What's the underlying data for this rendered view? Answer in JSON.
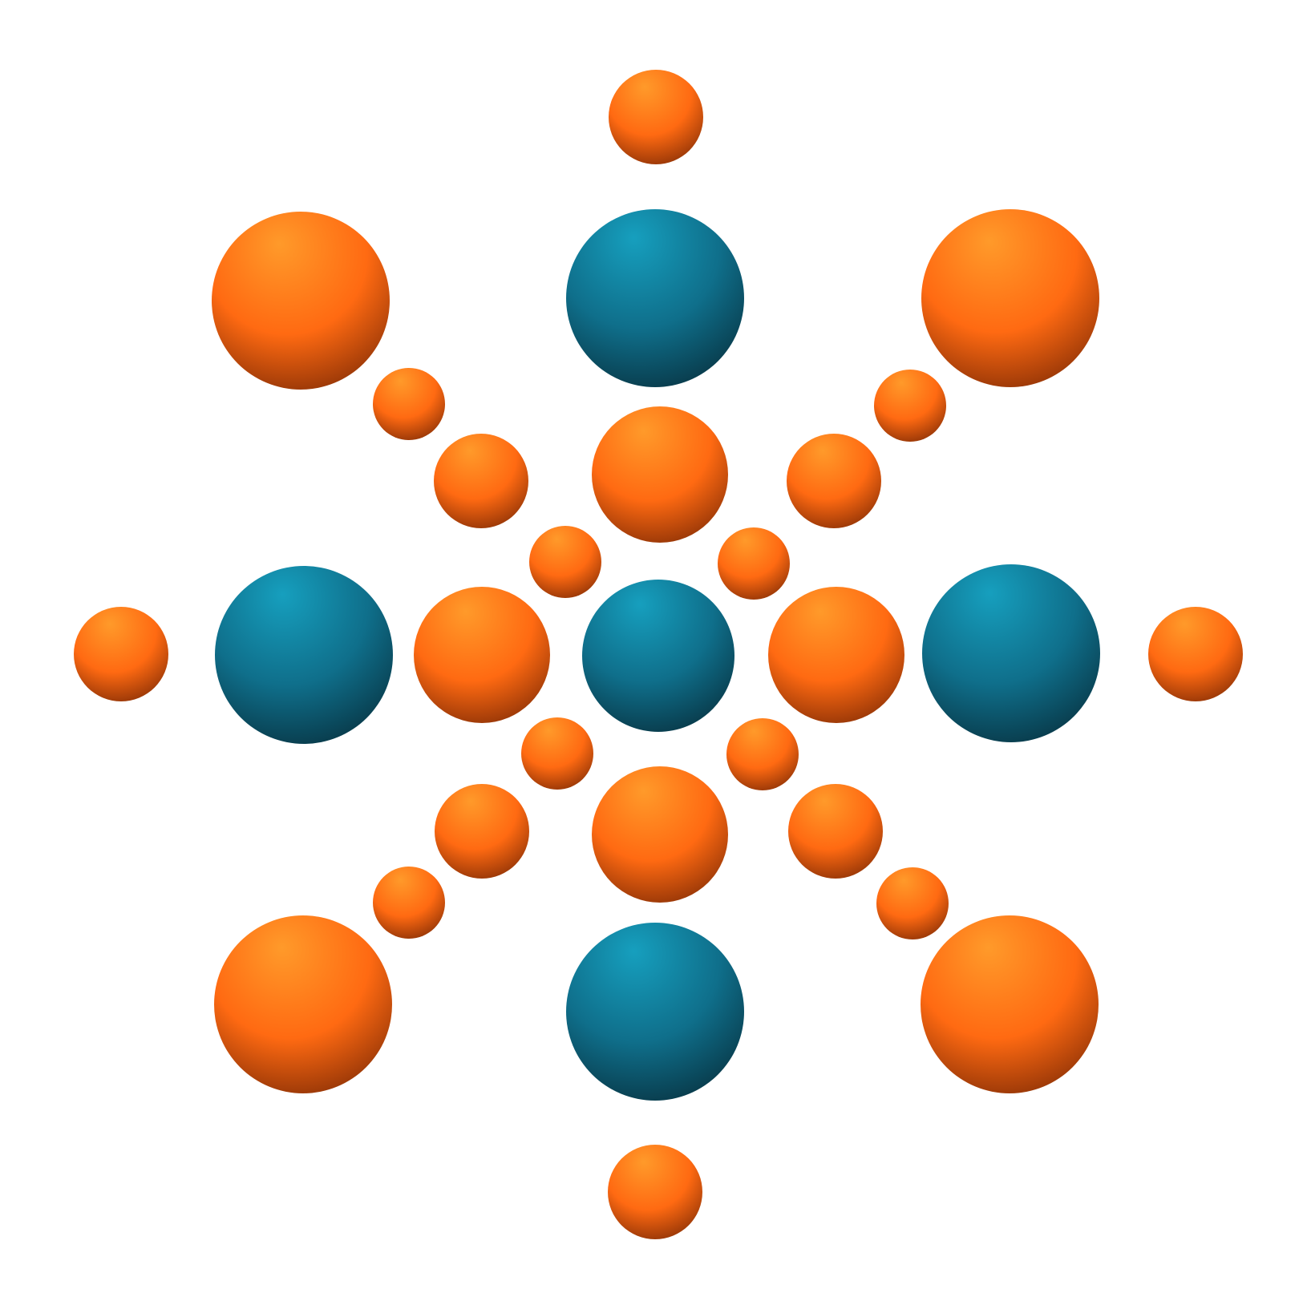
{
  "graphic": {
    "description_name": "starburst-sphere-logo",
    "colors": {
      "background": "#ffffff",
      "orange_highlight": "#ff9a2a",
      "orange_mid": "#ff6a12",
      "orange_shadow": "#8e3206",
      "teal_highlight": "#169fbe",
      "teal_mid": "#0f6f8b",
      "teal_shadow": "#083645"
    },
    "spheres": [
      {
        "name": "top-small-orange-sphere",
        "color": "orange"
      },
      {
        "name": "top-left-large-orange-sphere",
        "color": "orange"
      },
      {
        "name": "top-teal-sphere",
        "color": "teal"
      },
      {
        "name": "top-right-large-orange-sphere",
        "color": "orange"
      },
      {
        "name": "upper-left-small-orange-sphere",
        "color": "orange"
      },
      {
        "name": "upper-right-small-orange-sphere",
        "color": "orange"
      },
      {
        "name": "upper-left-medium-orange-sphere",
        "color": "orange"
      },
      {
        "name": "upper-center-orange-sphere",
        "color": "orange"
      },
      {
        "name": "upper-right-medium-orange-sphere",
        "color": "orange"
      },
      {
        "name": "inner-upper-left-orange-sphere",
        "color": "orange"
      },
      {
        "name": "inner-upper-right-orange-sphere",
        "color": "orange"
      },
      {
        "name": "far-left-small-orange-sphere",
        "color": "orange"
      },
      {
        "name": "left-teal-sphere",
        "color": "teal"
      },
      {
        "name": "left-inner-orange-sphere",
        "color": "orange"
      },
      {
        "name": "center-teal-sphere",
        "color": "teal"
      },
      {
        "name": "right-inner-orange-sphere",
        "color": "orange"
      },
      {
        "name": "right-teal-sphere",
        "color": "teal"
      },
      {
        "name": "far-right-small-orange-sphere",
        "color": "orange"
      },
      {
        "name": "inner-lower-left-orange-sphere",
        "color": "orange"
      },
      {
        "name": "inner-lower-right-orange-sphere",
        "color": "orange"
      },
      {
        "name": "lower-left-medium-orange-sphere",
        "color": "orange"
      },
      {
        "name": "lower-center-orange-sphere",
        "color": "orange"
      },
      {
        "name": "lower-right-medium-orange-sphere",
        "color": "orange"
      },
      {
        "name": "lower-left-small-orange-sphere",
        "color": "orange"
      },
      {
        "name": "lower-right-small-orange-sphere",
        "color": "orange"
      },
      {
        "name": "bottom-left-large-orange-sphere",
        "color": "orange"
      },
      {
        "name": "bottom-teal-sphere",
        "color": "teal"
      },
      {
        "name": "bottom-right-large-orange-sphere",
        "color": "orange"
      },
      {
        "name": "bottom-small-orange-sphere",
        "color": "orange"
      }
    ]
  }
}
